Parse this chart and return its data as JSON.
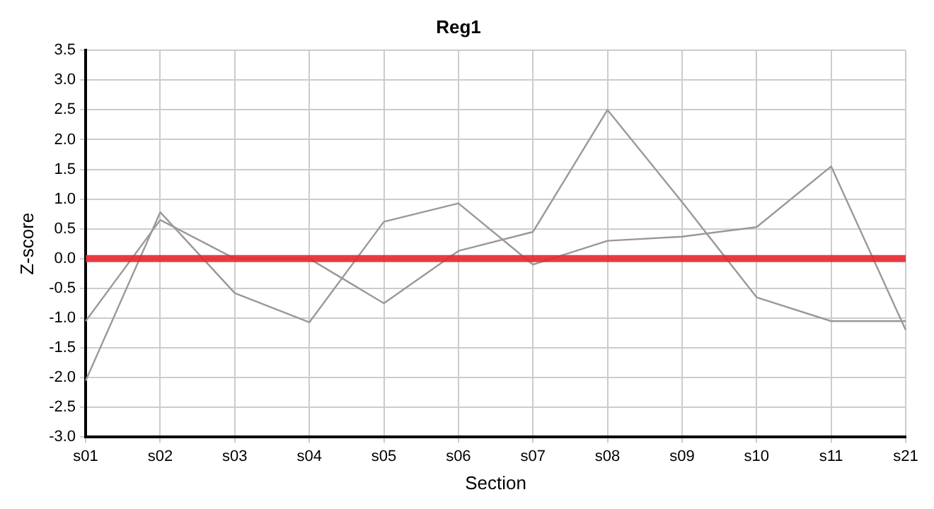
{
  "chart_data": {
    "type": "line",
    "title": "Reg1",
    "xlabel": "Section",
    "ylabel": "Z-score",
    "categories": [
      "s01",
      "s02",
      "s03",
      "s04",
      "s05",
      "s06",
      "s07",
      "s08",
      "s09",
      "s10",
      "s11",
      "s21"
    ],
    "series": [
      {
        "color": "#999999",
        "values": [
          -2.05,
          0.78,
          -0.58,
          -1.07,
          0.62,
          0.93,
          -0.1,
          0.3,
          0.37,
          0.53,
          1.55,
          -1.2
        ]
      },
      {
        "color": "#999999",
        "values": [
          -1.05,
          0.65,
          0.0,
          0.0,
          -0.75,
          0.13,
          0.45,
          2.5,
          0.95,
          -0.65,
          -1.05,
          -1.05
        ]
      }
    ],
    "ylim": [
      -3,
      3.5
    ],
    "yticks": [
      {
        "value": -3,
        "label": "-3.0"
      },
      {
        "value": -2.5,
        "label": "-2.5"
      },
      {
        "value": -2,
        "label": "-2.0"
      },
      {
        "value": -1.5,
        "label": "-1.5"
      },
      {
        "value": -1,
        "label": "-1.0"
      },
      {
        "value": -0.5,
        "label": "-0.5"
      },
      {
        "value": 0,
        "label": "0.0"
      },
      {
        "value": 0.5,
        "label": "0.5"
      },
      {
        "value": 1,
        "label": "1.0"
      },
      {
        "value": 1.5,
        "label": "1.5"
      },
      {
        "value": 2,
        "label": "2.0"
      },
      {
        "value": 2.5,
        "label": "2.5"
      },
      {
        "value": 3,
        "label": "3.0"
      },
      {
        "value": 3.5,
        "label": "3.5"
      }
    ],
    "ref_lines": [
      {
        "axis": "y",
        "value": 0,
        "color": "#e8262b"
      }
    ],
    "grid": true,
    "legend": false,
    "marker": "none",
    "line_style": "solid"
  }
}
